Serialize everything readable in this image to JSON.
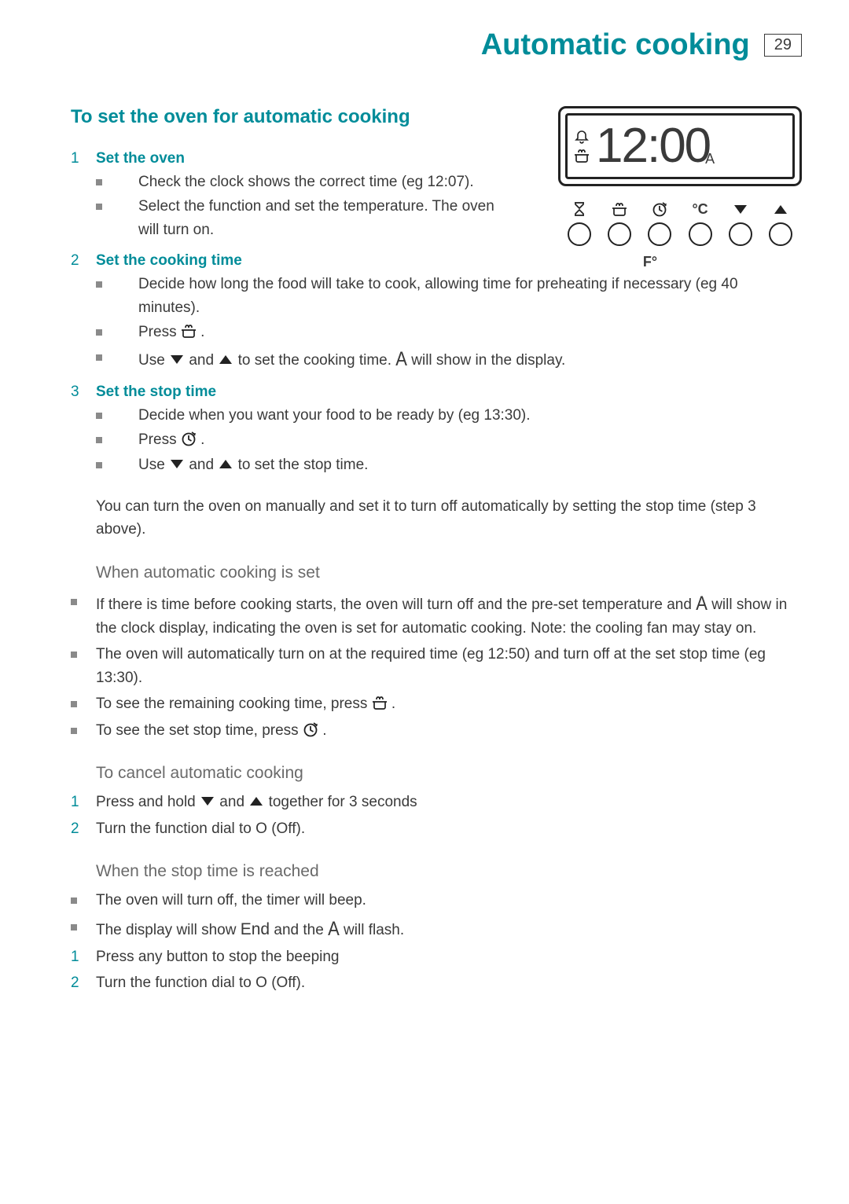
{
  "page": {
    "title": "Automatic cooking",
    "number": "29"
  },
  "colors": {
    "accent": "#008c99",
    "text": "#3a3a3a",
    "bullet": "#8a8a8a",
    "subhead": "#6a6a6a",
    "border": "#222222",
    "bg": "#ffffff"
  },
  "typography": {
    "title_size": 38,
    "heading_size": 24,
    "body_size": 19,
    "subhead_size": 21
  },
  "section_heading": "To set the oven for automatic cooking",
  "panel": {
    "display_time": "12:00",
    "bell_icon": "bell",
    "cook_icon": "cook-pot",
    "corner": "A",
    "buttons": [
      {
        "name": "timer",
        "label_icon": "hourglass"
      },
      {
        "name": "cook-time",
        "label_icon": "cook-pot"
      },
      {
        "name": "stop-time",
        "label_icon": "clock-arrow"
      },
      {
        "name": "celsius",
        "label_text": "°C"
      },
      {
        "name": "down",
        "label_icon": "triangle-down"
      },
      {
        "name": "up",
        "label_icon": "triangle-up"
      }
    ],
    "f_label": "F°"
  },
  "steps": [
    {
      "num": "1",
      "label": "Set the oven",
      "bullets": [
        {
          "text": "Check the clock shows the correct time (eg 12:07)."
        },
        {
          "text": "Select the function and set the temperature. The oven will turn on."
        }
      ]
    },
    {
      "num": "2",
      "label": "Set the cooking time",
      "bullets": [
        {
          "text": "Decide how long the food will take to cook, allowing time for preheating if necessary (eg 40 minutes)."
        },
        {
          "text_parts": [
            "Press ",
            {
              "icon": "cook-pot"
            },
            " ."
          ]
        },
        {
          "text_parts": [
            "Use  ",
            {
              "icon": "triangle-down"
            },
            " and  ",
            {
              "icon": "triangle-up"
            },
            "  to set the cooking time.   ",
            {
              "a": "A"
            },
            "  will show in the display."
          ]
        }
      ]
    },
    {
      "num": "3",
      "label": "Set the stop time",
      "bullets": [
        {
          "text": "Decide when you want your food to be ready by (eg 13:30)."
        },
        {
          "text_parts": [
            "Press ",
            {
              "icon": "clock-arrow"
            },
            "  ."
          ]
        },
        {
          "text_parts": [
            "Use   ",
            {
              "icon": "triangle-down"
            },
            " and  ",
            {
              "icon": "triangle-up"
            },
            "  to set the stop time."
          ]
        }
      ]
    }
  ],
  "note_para": "You can turn the oven on manually and set it to turn off automatically by setting the stop time (step 3 above).",
  "when_set": {
    "heading": "When automatic cooking is set",
    "items": [
      {
        "type": "sq",
        "parts": [
          "If there is time before cooking starts, the oven will turn off and the pre-set temperature and  ",
          {
            "a": "A"
          },
          " will show in the clock display, indicating the oven is set for automatic cooking. Note: the cooling fan may stay on."
        ]
      },
      {
        "type": "sq",
        "parts": [
          "The oven will automatically turn on at the required time (eg 12:50) and turn off at the set stop time (eg 13:30)."
        ]
      },
      {
        "type": "sq",
        "parts": [
          "To see the remaining cooking time, press ",
          {
            "icon": "cook-pot"
          },
          " ."
        ]
      },
      {
        "type": "sq",
        "parts": [
          "To see the set stop time, press ",
          {
            "icon": "clock-arrow"
          },
          "  ."
        ]
      }
    ]
  },
  "cancel": {
    "heading": "To cancel automatic cooking",
    "items": [
      {
        "type": "num",
        "num": "1",
        "parts": [
          "Press and hold   ",
          {
            "icon": "triangle-down"
          },
          " and  ",
          {
            "icon": "triangle-up"
          },
          "  together for 3 seconds"
        ]
      },
      {
        "type": "num",
        "num": "2",
        "parts": [
          "Turn the function dial to O (Off)."
        ]
      }
    ]
  },
  "stop_reached": {
    "heading": "When the stop time is reached",
    "items": [
      {
        "type": "sq",
        "parts": [
          "The oven will turn off, the timer will beep."
        ]
      },
      {
        "type": "sq",
        "parts": [
          "The display will show ",
          {
            "end": "End"
          },
          "   and the  ",
          {
            "a": "A"
          },
          "  will flash."
        ]
      },
      {
        "type": "num",
        "num": "1",
        "parts": [
          "Press any button to stop the beeping"
        ]
      },
      {
        "type": "num",
        "num": "2",
        "parts": [
          "Turn the function dial to O (Off)."
        ]
      }
    ]
  }
}
